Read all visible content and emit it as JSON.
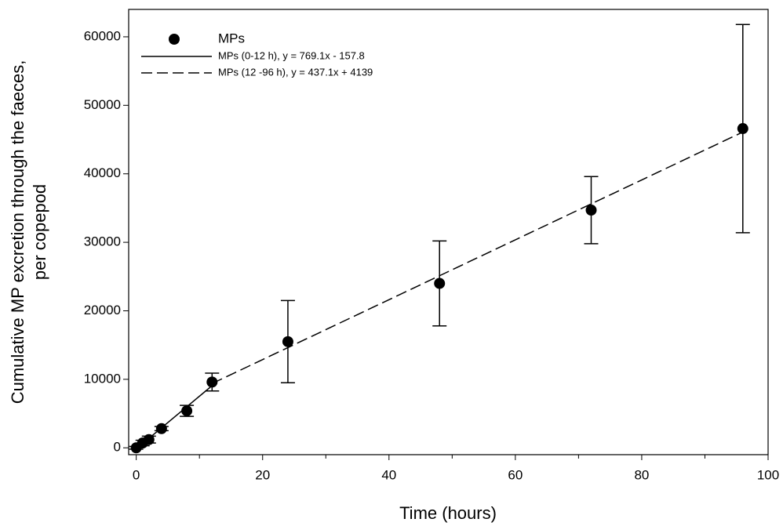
{
  "chart_data": {
    "type": "scatter",
    "xlabel": "Time (hours)",
    "ylabel": [
      "Cumulative MP excretion through the faeces,",
      "per copepod"
    ],
    "xlim": [
      -1.2,
      100
    ],
    "ylim": [
      -1000,
      64000
    ],
    "xticks": [
      0,
      20,
      40,
      60,
      80,
      100
    ],
    "xminorticks": [
      10,
      30,
      50,
      70,
      90
    ],
    "yticks": [
      0,
      10000,
      20000,
      30000,
      40000,
      50000,
      60000
    ],
    "legend": "upper left",
    "series": [
      {
        "name": "MPs",
        "type": "scatter",
        "color": "#000000",
        "x": [
          0,
          1,
          2,
          4,
          8,
          12,
          24,
          48,
          72,
          96
        ],
        "values": [
          0,
          700,
          1200,
          2800,
          5400,
          9600,
          15500,
          24000,
          34700,
          46600
        ],
        "errors": [
          200,
          400,
          500,
          300,
          800,
          1300,
          6000,
          6200,
          4900,
          15200
        ]
      },
      {
        "name": "MPs (0-12 h), y = 769.1x - 157.8",
        "type": "line",
        "dash": false,
        "color": "#000000",
        "x": [
          0,
          12
        ],
        "values": [
          -157.8,
          9071.4
        ]
      },
      {
        "name": "MPs (12 -96 h), y = 437.1x + 4139",
        "type": "line",
        "dash": true,
        "color": "#000000",
        "x": [
          12,
          96
        ],
        "values": [
          9384.2,
          46100.6
        ]
      }
    ]
  }
}
